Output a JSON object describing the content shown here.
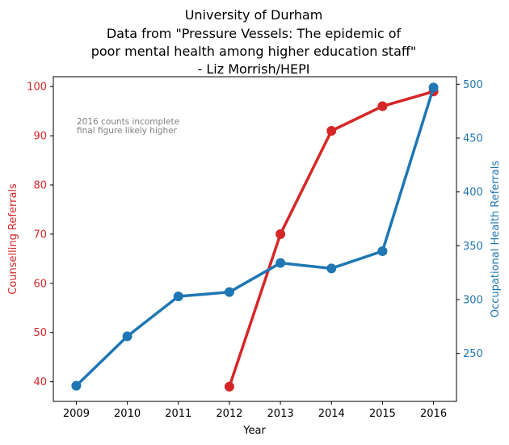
{
  "chart_data": {
    "type": "line",
    "title": [
      "University of Durham",
      "Data from \"Pressure Vessels: The epidemic of",
      "poor mental health among higher education staff\"",
      "- Liz Morrish/HEPI"
    ],
    "xlabel": "Year",
    "ylabel_left": "Counselling Referrals",
    "ylabel_right": "Occupational Health Referrals",
    "x": [
      2009,
      2010,
      2011,
      2012,
      2013,
      2014,
      2015,
      2016
    ],
    "x_ticks": [
      "2009",
      "2010",
      "2011",
      "2012",
      "2013",
      "2014",
      "2015",
      "2016"
    ],
    "y_left_ticks": [
      "40",
      "50",
      "60",
      "70",
      "80",
      "90",
      "100"
    ],
    "y_right_ticks": [
      "250",
      "300",
      "350",
      "400",
      "450",
      "500"
    ],
    "ylim_left": [
      36,
      102
    ],
    "ylim_right": [
      205.5,
      507
    ],
    "xlim": [
      2008.55,
      2016.45
    ],
    "grid": false,
    "series": [
      {
        "axis": "left",
        "color": "#d62728",
        "x": [
          2012,
          2013,
          2014,
          2015,
          2016
        ],
        "values": [
          39,
          70,
          91,
          96,
          99
        ]
      },
      {
        "axis": "right",
        "color": "#1f77b4",
        "x": [
          2009,
          2010,
          2011,
          2012,
          2013,
          2014,
          2015,
          2016
        ],
        "values": [
          220,
          266,
          303,
          307,
          334,
          329,
          345,
          497
        ]
      }
    ],
    "annotation": [
      "2016 counts incomplete",
      "final figure likely higher"
    ]
  }
}
